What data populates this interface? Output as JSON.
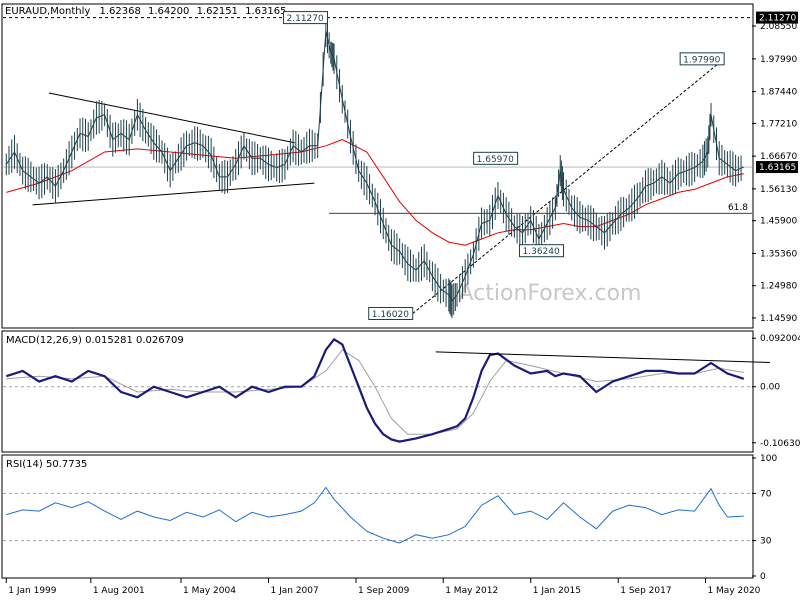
{
  "chart_data": {
    "type": "line",
    "symbol": "EURAUD",
    "timeframe": "Monthly",
    "ohlc": {
      "open": "1.62368",
      "high": "1.64200",
      "low": "1.62151",
      "close": "1.63165"
    },
    "watermark": "ActionForex.com",
    "x_tick_labels": [
      "1 Jan 1999",
      "1 Aug 2001",
      "1 May 2004",
      "1 Jan 2007",
      "1 Sep 2009",
      "1 May 2012",
      "1 Jan 2015",
      "1 Sep 2017",
      "1 May 2020"
    ],
    "x_tick_years": [
      1999.0,
      2001.58,
      2004.33,
      2007.0,
      2009.67,
      2012.33,
      2015.0,
      2017.67,
      2020.33
    ],
    "x_range": [
      1998.9,
      2021.75
    ],
    "price_panel": {
      "ylim": [
        1.12,
        2.15
      ],
      "y_tick_labels": [
        "2.08550",
        "1.97990",
        "1.87440",
        "1.77210",
        "1.66670",
        "1.56130",
        "1.45900",
        "1.35360",
        "1.24980",
        "1.14590"
      ],
      "y_tick_values": [
        2.0855,
        1.9799,
        1.8744,
        1.7721,
        1.6667,
        1.5613,
        1.459,
        1.3536,
        1.2498,
        1.1459
      ],
      "current_price_label": "1.63165",
      "current_price": 1.63165,
      "high_label": "2.11270",
      "high_level": 2.1127,
      "fib_label": "61.8",
      "fib_level": 1.483,
      "annotations": [
        {
          "text": "2.11270",
          "x": 2008.8,
          "y": 2.1127
        },
        {
          "text": "1.97990",
          "x": 2020.9,
          "y": 1.9799
        },
        {
          "text": "1.65970",
          "x": 2014.6,
          "y": 1.6597
        },
        {
          "text": "1.36240",
          "x": 2016.0,
          "y": 1.3624
        },
        {
          "text": "1.16020",
          "x": 2011.4,
          "y": 1.1602
        }
      ],
      "price_series": [
        [
          1999.0,
          1.64
        ],
        [
          1999.25,
          1.68
        ],
        [
          1999.5,
          1.62
        ],
        [
          1999.75,
          1.6
        ],
        [
          2000.0,
          1.58
        ],
        [
          2000.25,
          1.6
        ],
        [
          2000.5,
          1.57
        ],
        [
          2000.75,
          1.62
        ],
        [
          2001.0,
          1.68
        ],
        [
          2001.25,
          1.74
        ],
        [
          2001.5,
          1.73
        ],
        [
          2001.75,
          1.79
        ],
        [
          2002.0,
          1.8
        ],
        [
          2002.25,
          1.72
        ],
        [
          2002.5,
          1.74
        ],
        [
          2002.75,
          1.72
        ],
        [
          2003.0,
          1.8
        ],
        [
          2003.25,
          1.75
        ],
        [
          2003.5,
          1.71
        ],
        [
          2003.75,
          1.68
        ],
        [
          2004.0,
          1.62
        ],
        [
          2004.25,
          1.66
        ],
        [
          2004.5,
          1.7
        ],
        [
          2004.75,
          1.71
        ],
        [
          2005.0,
          1.7
        ],
        [
          2005.25,
          1.67
        ],
        [
          2005.5,
          1.6
        ],
        [
          2005.75,
          1.6
        ],
        [
          2006.0,
          1.64
        ],
        [
          2006.25,
          1.7
        ],
        [
          2006.5,
          1.66
        ],
        [
          2006.75,
          1.66
        ],
        [
          2007.0,
          1.64
        ],
        [
          2007.25,
          1.63
        ],
        [
          2007.5,
          1.64
        ],
        [
          2007.75,
          1.7
        ],
        [
          2008.0,
          1.68
        ],
        [
          2008.25,
          1.7
        ],
        [
          2008.5,
          1.7
        ],
        [
          2008.75,
          2.07
        ],
        [
          2008.9,
          2.0
        ],
        [
          2009.0,
          1.98
        ],
        [
          2009.25,
          1.85
        ],
        [
          2009.5,
          1.73
        ],
        [
          2009.75,
          1.62
        ],
        [
          2010.0,
          1.58
        ],
        [
          2010.25,
          1.52
        ],
        [
          2010.5,
          1.45
        ],
        [
          2010.75,
          1.38
        ],
        [
          2011.0,
          1.36
        ],
        [
          2011.25,
          1.32
        ],
        [
          2011.5,
          1.3
        ],
        [
          2011.75,
          1.33
        ],
        [
          2012.0,
          1.28
        ],
        [
          2012.25,
          1.24
        ],
        [
          2012.5,
          1.22
        ],
        [
          2012.6,
          1.2
        ],
        [
          2012.75,
          1.22
        ],
        [
          2013.0,
          1.28
        ],
        [
          2013.25,
          1.35
        ],
        [
          2013.5,
          1.45
        ],
        [
          2013.75,
          1.46
        ],
        [
          2014.0,
          1.54
        ],
        [
          2014.25,
          1.48
        ],
        [
          2014.5,
          1.44
        ],
        [
          2014.75,
          1.42
        ],
        [
          2015.0,
          1.46
        ],
        [
          2015.25,
          1.4
        ],
        [
          2015.5,
          1.45
        ],
        [
          2015.75,
          1.5
        ],
        [
          2015.9,
          1.62
        ],
        [
          2016.0,
          1.56
        ],
        [
          2016.25,
          1.5
        ],
        [
          2016.5,
          1.47
        ],
        [
          2016.75,
          1.46
        ],
        [
          2017.0,
          1.44
        ],
        [
          2017.25,
          1.42
        ],
        [
          2017.5,
          1.45
        ],
        [
          2017.75,
          1.48
        ],
        [
          2018.0,
          1.5
        ],
        [
          2018.25,
          1.53
        ],
        [
          2018.5,
          1.57
        ],
        [
          2018.75,
          1.58
        ],
        [
          2019.0,
          1.6
        ],
        [
          2019.25,
          1.58
        ],
        [
          2019.5,
          1.61
        ],
        [
          2019.75,
          1.62
        ],
        [
          2020.0,
          1.63
        ],
        [
          2020.25,
          1.65
        ],
        [
          2020.4,
          1.68
        ],
        [
          2020.5,
          1.8
        ],
        [
          2020.75,
          1.66
        ],
        [
          2021.0,
          1.64
        ],
        [
          2021.25,
          1.62
        ],
        [
          2021.5,
          1.63165
        ]
      ],
      "ma_series": [
        [
          1999.0,
          1.55
        ],
        [
          2000.0,
          1.58
        ],
        [
          2001.0,
          1.62
        ],
        [
          2002.0,
          1.68
        ],
        [
          2003.0,
          1.69
        ],
        [
          2004.0,
          1.68
        ],
        [
          2005.0,
          1.67
        ],
        [
          2006.0,
          1.66
        ],
        [
          2007.0,
          1.67
        ],
        [
          2008.0,
          1.68
        ],
        [
          2008.75,
          1.7
        ],
        [
          2009.25,
          1.72
        ],
        [
          2010.0,
          1.68
        ],
        [
          2010.5,
          1.6
        ],
        [
          2011.0,
          1.52
        ],
        [
          2011.5,
          1.46
        ],
        [
          2012.0,
          1.42
        ],
        [
          2012.5,
          1.39
        ],
        [
          2013.0,
          1.38
        ],
        [
          2013.5,
          1.4
        ],
        [
          2014.0,
          1.42
        ],
        [
          2014.5,
          1.43
        ],
        [
          2015.0,
          1.43
        ],
        [
          2015.5,
          1.44
        ],
        [
          2016.0,
          1.45
        ],
        [
          2016.5,
          1.44
        ],
        [
          2017.0,
          1.44
        ],
        [
          2017.5,
          1.46
        ],
        [
          2018.0,
          1.48
        ],
        [
          2018.5,
          1.51
        ],
        [
          2019.0,
          1.53
        ],
        [
          2019.5,
          1.55
        ],
        [
          2020.0,
          1.56
        ],
        [
          2020.5,
          1.58
        ],
        [
          2021.0,
          1.6
        ],
        [
          2021.5,
          1.61
        ]
      ],
      "trendlines": [
        {
          "from": [
            2000.3,
            1.87
          ],
          "to": [
            2007.8,
            1.71
          ]
        },
        {
          "from": [
            1999.8,
            1.51
          ],
          "to": [
            2008.4,
            1.58
          ]
        },
        {
          "from": [
            2011.4,
            1.1602
          ],
          "to": [
            2020.9,
            1.9799
          ]
        }
      ]
    },
    "macd_panel": {
      "label": "MACD(12,26,9) 0.015281 0.026709",
      "ylim": [
        -0.12,
        0.1
      ],
      "y_tick_labels": [
        "0.092004",
        "0.00",
        "-0.106308"
      ],
      "y_tick_values": [
        0.092004,
        0.0,
        -0.106308
      ],
      "macd_series": [
        [
          1999.0,
          0.02
        ],
        [
          1999.5,
          0.03
        ],
        [
          2000.0,
          0.01
        ],
        [
          2000.5,
          0.02
        ],
        [
          2001.0,
          0.01
        ],
        [
          2001.5,
          0.03
        ],
        [
          2002.0,
          0.02
        ],
        [
          2002.5,
          -0.01
        ],
        [
          2003.0,
          -0.02
        ],
        [
          2003.5,
          0.0
        ],
        [
          2004.0,
          -0.01
        ],
        [
          2004.5,
          -0.02
        ],
        [
          2005.0,
          -0.01
        ],
        [
          2005.5,
          0.0
        ],
        [
          2006.0,
          -0.02
        ],
        [
          2006.5,
          0.0
        ],
        [
          2007.0,
          -0.01
        ],
        [
          2007.5,
          0.0
        ],
        [
          2008.0,
          0.0
        ],
        [
          2008.4,
          0.02
        ],
        [
          2008.75,
          0.07
        ],
        [
          2009.0,
          0.09
        ],
        [
          2009.25,
          0.08
        ],
        [
          2009.5,
          0.04
        ],
        [
          2009.75,
          0.0
        ],
        [
          2010.0,
          -0.04
        ],
        [
          2010.25,
          -0.07
        ],
        [
          2010.5,
          -0.09
        ],
        [
          2010.75,
          -0.1
        ],
        [
          2011.0,
          -0.104
        ],
        [
          2011.5,
          -0.098
        ],
        [
          2012.0,
          -0.09
        ],
        [
          2012.5,
          -0.08
        ],
        [
          2012.75,
          -0.075
        ],
        [
          2013.0,
          -0.06
        ],
        [
          2013.25,
          -0.02
        ],
        [
          2013.5,
          0.03
        ],
        [
          2013.75,
          0.06
        ],
        [
          2014.0,
          0.063
        ],
        [
          2014.5,
          0.04
        ],
        [
          2015.0,
          0.025
        ],
        [
          2015.5,
          0.03
        ],
        [
          2015.75,
          0.02
        ],
        [
          2016.0,
          0.025
        ],
        [
          2016.5,
          0.02
        ],
        [
          2016.75,
          0.005
        ],
        [
          2017.0,
          -0.01
        ],
        [
          2017.5,
          0.01
        ],
        [
          2018.0,
          0.02
        ],
        [
          2018.5,
          0.03
        ],
        [
          2019.0,
          0.03
        ],
        [
          2019.5,
          0.025
        ],
        [
          2020.0,
          0.025
        ],
        [
          2020.5,
          0.045
        ],
        [
          2021.0,
          0.025
        ],
        [
          2021.5,
          0.015
        ]
      ],
      "signal_series": [
        [
          1999.0,
          0.015
        ],
        [
          2000.0,
          0.02
        ],
        [
          2001.0,
          0.015
        ],
        [
          2002.0,
          0.02
        ],
        [
          2003.0,
          -0.01
        ],
        [
          2004.0,
          -0.005
        ],
        [
          2005.0,
          -0.01
        ],
        [
          2006.0,
          -0.01
        ],
        [
          2007.0,
          -0.005
        ],
        [
          2008.0,
          0.0
        ],
        [
          2008.75,
          0.03
        ],
        [
          2009.25,
          0.07
        ],
        [
          2009.75,
          0.05
        ],
        [
          2010.25,
          0.0
        ],
        [
          2010.75,
          -0.06
        ],
        [
          2011.25,
          -0.09
        ],
        [
          2012.0,
          -0.09
        ],
        [
          2012.75,
          -0.08
        ],
        [
          2013.25,
          -0.05
        ],
        [
          2013.75,
          0.01
        ],
        [
          2014.25,
          0.05
        ],
        [
          2015.0,
          0.04
        ],
        [
          2016.0,
          0.025
        ],
        [
          2017.0,
          0.01
        ],
        [
          2018.0,
          0.015
        ],
        [
          2019.0,
          0.025
        ],
        [
          2020.0,
          0.025
        ],
        [
          2020.75,
          0.035
        ],
        [
          2021.5,
          0.027
        ]
      ],
      "trendline": {
        "from": [
          2012.1,
          0.066
        ],
        "to": [
          2022.3,
          0.046
        ]
      }
    },
    "rsi_panel": {
      "label": "RSI(14) 50.7735",
      "ylim": [
        0,
        100
      ],
      "y_tick_labels": [
        "100",
        "70",
        "30",
        "0"
      ],
      "y_tick_values": [
        100,
        70,
        30,
        0
      ],
      "rsi_series": [
        [
          1999.0,
          52
        ],
        [
          1999.5,
          56
        ],
        [
          2000.0,
          55
        ],
        [
          2000.5,
          62
        ],
        [
          2001.0,
          58
        ],
        [
          2001.5,
          63
        ],
        [
          2002.0,
          55
        ],
        [
          2002.5,
          48
        ],
        [
          2003.0,
          55
        ],
        [
          2003.5,
          50
        ],
        [
          2004.0,
          47
        ],
        [
          2004.5,
          54
        ],
        [
          2005.0,
          50
        ],
        [
          2005.5,
          56
        ],
        [
          2006.0,
          46
        ],
        [
          2006.5,
          54
        ],
        [
          2007.0,
          50
        ],
        [
          2007.5,
          52
        ],
        [
          2008.0,
          55
        ],
        [
          2008.4,
          62
        ],
        [
          2008.75,
          75
        ],
        [
          2009.0,
          65
        ],
        [
          2009.5,
          50
        ],
        [
          2010.0,
          38
        ],
        [
          2010.5,
          32
        ],
        [
          2011.0,
          28
        ],
        [
          2011.5,
          35
        ],
        [
          2012.0,
          32
        ],
        [
          2012.5,
          35
        ],
        [
          2013.0,
          42
        ],
        [
          2013.5,
          60
        ],
        [
          2014.0,
          68
        ],
        [
          2014.5,
          52
        ],
        [
          2015.0,
          55
        ],
        [
          2015.5,
          48
        ],
        [
          2016.0,
          62
        ],
        [
          2016.5,
          50
        ],
        [
          2017.0,
          40
        ],
        [
          2017.5,
          55
        ],
        [
          2018.0,
          60
        ],
        [
          2018.5,
          58
        ],
        [
          2019.0,
          52
        ],
        [
          2019.5,
          56
        ],
        [
          2020.0,
          55
        ],
        [
          2020.5,
          74
        ],
        [
          2020.75,
          60
        ],
        [
          2021.0,
          50
        ],
        [
          2021.5,
          50.7735
        ]
      ]
    }
  }
}
